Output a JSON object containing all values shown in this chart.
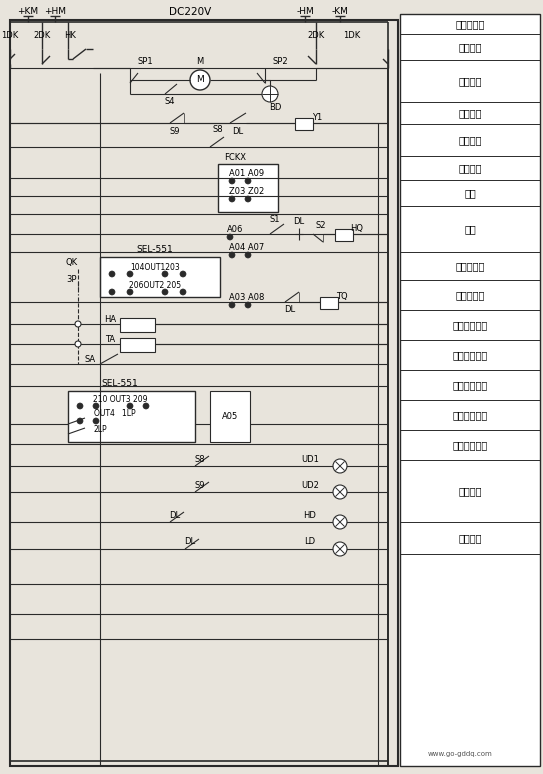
{
  "bg_color": "#e8e4dc",
  "line_color": "#2a2a2a",
  "fig_w": 5.43,
  "fig_h": 7.74,
  "dpi": 100,
  "watermark": "www.go-gddq.com",
  "right_labels": [
    "控制小母线",
    "空气开关",
    "储能回路",
    "闭锁回路",
    "操作电源",
    "测控电源",
    "通合",
    "通跳",
    "就地手合闸",
    "就地手跳闸",
    "现场紧急跳闸",
    "速断保护跳闸",
    "过流保护跳闸",
    "试验位置指示",
    "工作位置指示",
    "合闸指示",
    "跳闸指示"
  ]
}
